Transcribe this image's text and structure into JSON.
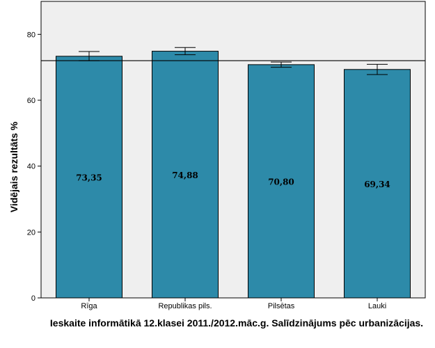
{
  "chart_data": {
    "type": "bar",
    "categories": [
      "Rīga",
      "Republikas pils.",
      "Pilsētas",
      "Lauki"
    ],
    "values": [
      73.35,
      74.88,
      70.8,
      69.34
    ],
    "value_labels": [
      "73,35",
      "74,88",
      "70,80",
      "69,34"
    ],
    "error_bars": [
      [
        72.0,
        74.8
      ],
      [
        73.8,
        76.0
      ],
      [
        70.0,
        71.6
      ],
      [
        67.8,
        70.9
      ]
    ],
    "reference_line": 72.0,
    "ylim": [
      0,
      90
    ],
    "yticks": [
      0,
      20,
      40,
      60,
      80
    ],
    "ylabel": "Vidējais rezultāts %",
    "xlabel": "Ieskaite informātikā 12.klasei 2011./2012.māc.g. Salīdzinājums pēc urbanizācijas.",
    "grid": false,
    "bar_color": "#2d8aa9",
    "plot_background": "#efefef"
  }
}
